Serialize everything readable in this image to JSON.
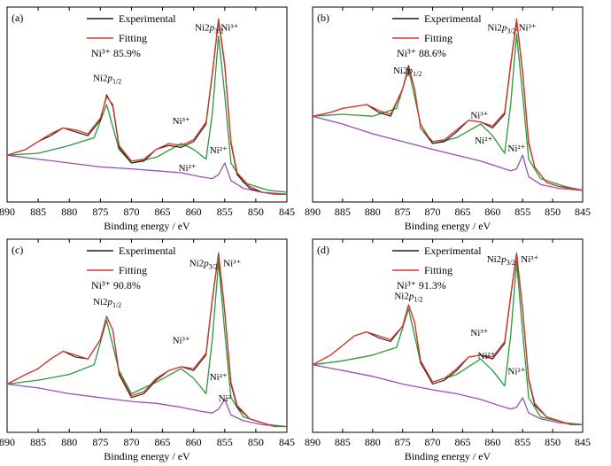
{
  "chart_data": [
    {
      "type": "line",
      "panel_label": "(a)",
      "legend": [
        "Experimental",
        "Fitting"
      ],
      "ratio_text": "Ni³⁺  85.9%",
      "xlabel": "Binding energy / eV",
      "xlim": [
        890,
        845
      ],
      "xticks": [
        890,
        885,
        880,
        875,
        870,
        865,
        860,
        855,
        850,
        845
      ],
      "grid": false,
      "legend_position": "top-left",
      "peak_labels": [
        {
          "text": "Ni2p",
          "sub": "1/2",
          "x": 873.9,
          "y": 0.62
        },
        {
          "text": "Ni2p",
          "sub": "3/2",
          "x": 857.5,
          "y": 0.88
        },
        {
          "text": "Ni³⁺",
          "x": 854.2,
          "y": 0.88
        },
        {
          "text": "Ni³⁺",
          "x": 862.0,
          "y": 0.4
        },
        {
          "text": "Ni²⁺",
          "x": 861.0,
          "y": 0.16
        },
        {
          "text": "Ni²⁺",
          "x": 856.0,
          "y": 0.25
        }
      ],
      "series": [
        {
          "name": "Experimental",
          "color": "#1a1a1a",
          "x": [
            890,
            887,
            885,
            883,
            881,
            879,
            877,
            875,
            874,
            873,
            872,
            870,
            868,
            866,
            864,
            862,
            860,
            858,
            857,
            856,
            855,
            854,
            853,
            851,
            849,
            847,
            845
          ],
          "y": [
            0.24,
            0.27,
            0.31,
            0.34,
            0.38,
            0.36,
            0.34,
            0.42,
            0.55,
            0.49,
            0.28,
            0.2,
            0.21,
            0.27,
            0.29,
            0.28,
            0.31,
            0.4,
            0.65,
            0.93,
            0.7,
            0.3,
            0.14,
            0.07,
            0.05,
            0.04,
            0.04
          ]
        },
        {
          "name": "Fitting",
          "color": "#d63a2a",
          "x": [
            890,
            887,
            885,
            883,
            881,
            879,
            877,
            875,
            874,
            873,
            872,
            870,
            868,
            866,
            864,
            862,
            860,
            858,
            857,
            856,
            855,
            854,
            853,
            851,
            849,
            847,
            845
          ],
          "y": [
            0.24,
            0.27,
            0.31,
            0.35,
            0.38,
            0.37,
            0.35,
            0.43,
            0.54,
            0.5,
            0.29,
            0.21,
            0.22,
            0.27,
            0.3,
            0.29,
            0.32,
            0.41,
            0.66,
            0.94,
            0.71,
            0.31,
            0.15,
            0.08,
            0.05,
            0.04,
            0.04
          ]
        },
        {
          "name": "",
          "color": "#2a9a3a",
          "x": [
            890,
            885,
            880,
            876,
            874,
            872,
            870,
            866,
            862,
            860,
            858,
            857,
            856,
            855,
            854,
            852,
            848,
            845
          ],
          "y": [
            0.24,
            0.25,
            0.29,
            0.33,
            0.5,
            0.27,
            0.2,
            0.23,
            0.3,
            0.27,
            0.22,
            0.45,
            0.85,
            0.55,
            0.2,
            0.1,
            0.06,
            0.05
          ]
        },
        {
          "name": "",
          "color": "#9a50b0",
          "x": [
            890,
            885,
            880,
            875,
            870,
            866,
            862,
            859,
            857,
            856,
            855,
            854,
            852,
            849,
            845
          ],
          "y": [
            0.24,
            0.22,
            0.2,
            0.18,
            0.17,
            0.16,
            0.15,
            0.13,
            0.12,
            0.14,
            0.2,
            0.11,
            0.07,
            0.05,
            0.04
          ]
        }
      ]
    },
    {
      "type": "line",
      "panel_label": "(b)",
      "legend": [
        "Experimental",
        "Fitting"
      ],
      "ratio_text": "Ni³⁺  88.6%",
      "xlabel": "Binding energy / eV",
      "xlim": [
        890,
        845
      ],
      "xticks": [
        890,
        885,
        880,
        875,
        870,
        865,
        860,
        855,
        850,
        845
      ],
      "grid": false,
      "legend_position": "top-left",
      "peak_labels": [
        {
          "text": "Ni2p",
          "sub": "1/2",
          "x": 874.2,
          "y": 0.66
        },
        {
          "text": "Ni2p",
          "sub": "3/2",
          "x": 858.5,
          "y": 0.88
        },
        {
          "text": "Ni³⁺",
          "x": 854.2,
          "y": 0.88
        },
        {
          "text": "Ni³⁺",
          "x": 862.2,
          "y": 0.43
        },
        {
          "text": "Ni²⁺",
          "x": 861.5,
          "y": 0.3
        },
        {
          "text": "Ni²⁺",
          "x": 856.0,
          "y": 0.26
        }
      ],
      "series": [
        {
          "name": "Experimental",
          "color": "#1a1a1a",
          "x": [
            890,
            887,
            885,
            883,
            881,
            879,
            877,
            875,
            874,
            873,
            872,
            870,
            868,
            866,
            864,
            862,
            860,
            858,
            857,
            856,
            855,
            854,
            853,
            851,
            849,
            847,
            845
          ],
          "y": [
            0.44,
            0.46,
            0.48,
            0.49,
            0.5,
            0.46,
            0.44,
            0.58,
            0.7,
            0.58,
            0.38,
            0.3,
            0.31,
            0.36,
            0.42,
            0.41,
            0.38,
            0.45,
            0.7,
            0.93,
            0.66,
            0.3,
            0.18,
            0.1,
            0.08,
            0.07,
            0.06
          ]
        },
        {
          "name": "Fitting",
          "color": "#d63a2a",
          "x": [
            890,
            887,
            885,
            883,
            881,
            879,
            877,
            875,
            874,
            873,
            872,
            870,
            868,
            866,
            864,
            862,
            860,
            858,
            857,
            856,
            855,
            854,
            853,
            851,
            849,
            847,
            845
          ],
          "y": [
            0.44,
            0.46,
            0.48,
            0.49,
            0.5,
            0.47,
            0.45,
            0.58,
            0.69,
            0.58,
            0.38,
            0.31,
            0.32,
            0.37,
            0.42,
            0.41,
            0.39,
            0.46,
            0.71,
            0.94,
            0.67,
            0.31,
            0.18,
            0.1,
            0.08,
            0.07,
            0.06
          ]
        },
        {
          "name": "",
          "color": "#2a9a3a",
          "x": [
            890,
            885,
            880,
            876,
            874,
            872,
            870,
            866,
            862,
            860,
            858,
            857,
            856,
            855,
            854,
            852,
            848,
            845
          ],
          "y": [
            0.44,
            0.45,
            0.44,
            0.48,
            0.68,
            0.4,
            0.3,
            0.33,
            0.4,
            0.34,
            0.25,
            0.5,
            0.86,
            0.55,
            0.22,
            0.12,
            0.08,
            0.06
          ]
        },
        {
          "name": "",
          "color": "#9a50b0",
          "x": [
            890,
            885,
            880,
            875,
            870,
            866,
            862,
            859,
            857,
            856,
            855,
            854,
            852,
            849,
            845
          ],
          "y": [
            0.44,
            0.4,
            0.35,
            0.31,
            0.27,
            0.24,
            0.21,
            0.18,
            0.16,
            0.17,
            0.24,
            0.13,
            0.09,
            0.07,
            0.06
          ]
        }
      ]
    },
    {
      "type": "line",
      "panel_label": "(c)",
      "legend": [
        "Experimental",
        "Fitting"
      ],
      "ratio_text": "Ni³⁺  90.8%",
      "xlabel": "Binding energy / eV",
      "xlim": [
        890,
        845
      ],
      "xticks": [
        890,
        885,
        880,
        875,
        870,
        865,
        860,
        855,
        850,
        845
      ],
      "grid": false,
      "legend_position": "top-left",
      "peak_labels": [
        {
          "text": "Ni2p",
          "sub": "1/2",
          "x": 873.9,
          "y": 0.66
        },
        {
          "text": "Ni2p",
          "sub": "3/2",
          "x": 858.4,
          "y": 0.86
        },
        {
          "text": "Ni³⁺",
          "x": 853.8,
          "y": 0.86
        },
        {
          "text": "Ni³⁺",
          "x": 862.0,
          "y": 0.46
        },
        {
          "text": "Ni²⁺",
          "x": 856.0,
          "y": 0.27
        },
        {
          "text": "Ni²",
          "x": 855.0,
          "y": 0.16
        }
      ],
      "series": [
        {
          "name": "Experimental",
          "color": "#1a1a1a",
          "x": [
            890,
            887,
            885,
            883,
            881,
            879,
            877,
            875,
            874,
            873,
            872,
            870,
            868,
            866,
            864,
            862,
            860,
            858,
            857,
            856,
            855,
            854,
            853,
            851,
            849,
            847,
            845
          ],
          "y": [
            0.25,
            0.3,
            0.33,
            0.38,
            0.42,
            0.39,
            0.38,
            0.48,
            0.6,
            0.53,
            0.3,
            0.18,
            0.2,
            0.27,
            0.32,
            0.34,
            0.32,
            0.4,
            0.68,
            0.92,
            0.62,
            0.25,
            0.13,
            0.07,
            0.05,
            0.03,
            0.03
          ]
        },
        {
          "name": "Fitting",
          "color": "#d63a2a",
          "x": [
            890,
            887,
            885,
            883,
            881,
            879,
            877,
            875,
            874,
            873,
            872,
            870,
            868,
            866,
            864,
            862,
            860,
            858,
            857,
            856,
            855,
            854,
            853,
            851,
            849,
            847,
            845
          ],
          "y": [
            0.25,
            0.3,
            0.33,
            0.38,
            0.42,
            0.4,
            0.38,
            0.48,
            0.6,
            0.53,
            0.31,
            0.19,
            0.21,
            0.28,
            0.32,
            0.34,
            0.33,
            0.41,
            0.69,
            0.93,
            0.63,
            0.26,
            0.14,
            0.07,
            0.05,
            0.03,
            0.03
          ]
        },
        {
          "name": "",
          "color": "#2a9a3a",
          "x": [
            890,
            885,
            880,
            876,
            874,
            872,
            870,
            866,
            862,
            860,
            858,
            857,
            856,
            855,
            854,
            852,
            848,
            845
          ],
          "y": [
            0.25,
            0.27,
            0.3,
            0.35,
            0.58,
            0.32,
            0.2,
            0.26,
            0.33,
            0.28,
            0.2,
            0.48,
            0.88,
            0.52,
            0.18,
            0.08,
            0.04,
            0.03
          ]
        },
        {
          "name": "",
          "color": "#9a50b0",
          "x": [
            890,
            885,
            880,
            875,
            870,
            866,
            862,
            859,
            857,
            856,
            855,
            854,
            852,
            849,
            845
          ],
          "y": [
            0.25,
            0.23,
            0.2,
            0.18,
            0.16,
            0.15,
            0.13,
            0.11,
            0.1,
            0.12,
            0.17,
            0.09,
            0.06,
            0.04,
            0.03
          ]
        }
      ]
    },
    {
      "type": "line",
      "panel_label": "(d)",
      "legend": [
        "Experimental",
        "Fitting"
      ],
      "ratio_text": "Ni³⁺  91.3%",
      "xlabel": "Binding energy / eV",
      "xlim": [
        890,
        845
      ],
      "xticks": [
        890,
        885,
        880,
        875,
        870,
        865,
        860,
        855,
        850,
        845
      ],
      "grid": false,
      "legend_position": "top-left",
      "peak_labels": [
        {
          "text": "Ni2p",
          "sub": "1/2",
          "x": 874.0,
          "y": 0.69
        },
        {
          "text": "Ni2p",
          "sub": "3/2",
          "x": 858.6,
          "y": 0.88
        },
        {
          "text": "Ni³⁺",
          "x": 853.8,
          "y": 0.88
        },
        {
          "text": "Ni³⁺",
          "x": 862.2,
          "y": 0.5
        },
        {
          "text": "Ni²⁺",
          "x": 861.0,
          "y": 0.38
        },
        {
          "text": "Ni²⁺",
          "x": 856.0,
          "y": 0.3
        }
      ],
      "series": [
        {
          "name": "Experimental",
          "color": "#1a1a1a",
          "x": [
            890,
            887,
            885,
            883,
            881,
            879,
            877,
            875,
            874,
            873,
            872,
            870,
            868,
            866,
            864,
            862,
            860,
            858,
            857,
            856,
            855,
            854,
            853,
            851,
            849,
            847,
            845
          ],
          "y": [
            0.35,
            0.4,
            0.45,
            0.5,
            0.52,
            0.49,
            0.47,
            0.55,
            0.66,
            0.57,
            0.36,
            0.25,
            0.27,
            0.32,
            0.39,
            0.4,
            0.38,
            0.46,
            0.7,
            0.92,
            0.63,
            0.27,
            0.14,
            0.08,
            0.06,
            0.04,
            0.04
          ]
        },
        {
          "name": "Fitting",
          "color": "#d63a2a",
          "x": [
            890,
            887,
            885,
            883,
            881,
            879,
            877,
            875,
            874,
            873,
            872,
            870,
            868,
            866,
            864,
            862,
            860,
            858,
            857,
            856,
            855,
            854,
            853,
            851,
            849,
            847,
            845
          ],
          "y": [
            0.35,
            0.4,
            0.45,
            0.5,
            0.52,
            0.5,
            0.48,
            0.55,
            0.66,
            0.57,
            0.37,
            0.26,
            0.28,
            0.33,
            0.39,
            0.4,
            0.39,
            0.47,
            0.71,
            0.93,
            0.64,
            0.28,
            0.15,
            0.08,
            0.06,
            0.04,
            0.04
          ]
        },
        {
          "name": "",
          "color": "#2a9a3a",
          "x": [
            890,
            885,
            880,
            876,
            874,
            872,
            870,
            866,
            862,
            860,
            858,
            857,
            856,
            855,
            854,
            852,
            848,
            845
          ],
          "y": [
            0.35,
            0.37,
            0.4,
            0.44,
            0.64,
            0.36,
            0.26,
            0.3,
            0.38,
            0.32,
            0.24,
            0.5,
            0.88,
            0.52,
            0.18,
            0.08,
            0.05,
            0.04
          ]
        },
        {
          "name": "",
          "color": "#9a50b0",
          "x": [
            890,
            885,
            880,
            875,
            870,
            866,
            862,
            859,
            857,
            856,
            855,
            854,
            852,
            849,
            845
          ],
          "y": [
            0.35,
            0.32,
            0.29,
            0.25,
            0.22,
            0.2,
            0.17,
            0.14,
            0.12,
            0.13,
            0.18,
            0.1,
            0.07,
            0.05,
            0.04
          ]
        }
      ]
    }
  ]
}
